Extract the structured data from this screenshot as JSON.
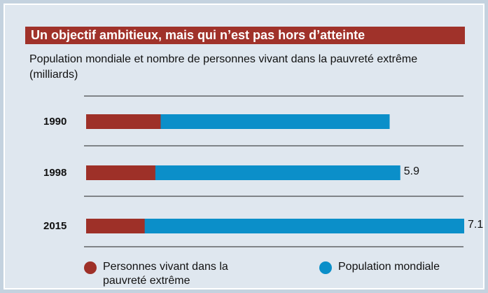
{
  "chart_data": {
    "type": "bar",
    "title": "Un objectif ambitieux, mais qui n’est pas hors d’atteinte",
    "subtitle": "Population mondiale et nombre de personnes vivant dans la pauvreté extrême (milliards)",
    "categories": [
      "1990",
      "1998",
      "2015"
    ],
    "series": [
      {
        "name": "Population mondiale",
        "color": "#0b8fc9",
        "values": [
          5.7,
          5.9,
          7.1
        ],
        "value_labels": [
          null,
          "5.9",
          "7.1"
        ]
      },
      {
        "name": "Personnes vivant dans la pauvreté extrême",
        "color": "#9e3028",
        "values": [
          1.4,
          1.3,
          1.1
        ]
      }
    ]
  }
}
